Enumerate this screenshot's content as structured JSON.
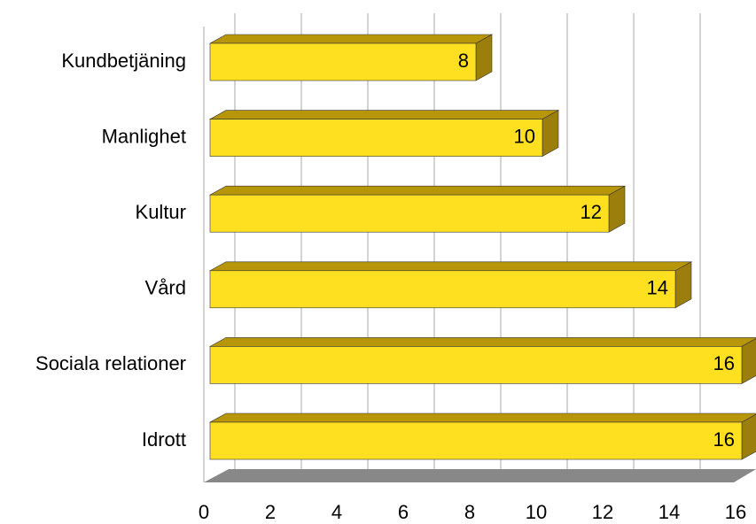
{
  "chart_data": {
    "type": "bar",
    "orientation": "horizontal",
    "categories": [
      "Kundbetjäning",
      "Manlighet",
      "Kultur",
      "Vård",
      "Sociala relationer",
      "Idrott"
    ],
    "values": [
      8,
      10,
      12,
      14,
      16,
      16
    ],
    "color": "#ffe020",
    "xlim": [
      0,
      16
    ],
    "xticks": [
      0,
      2,
      4,
      6,
      8,
      10,
      12,
      14,
      16
    ],
    "grid": true
  }
}
